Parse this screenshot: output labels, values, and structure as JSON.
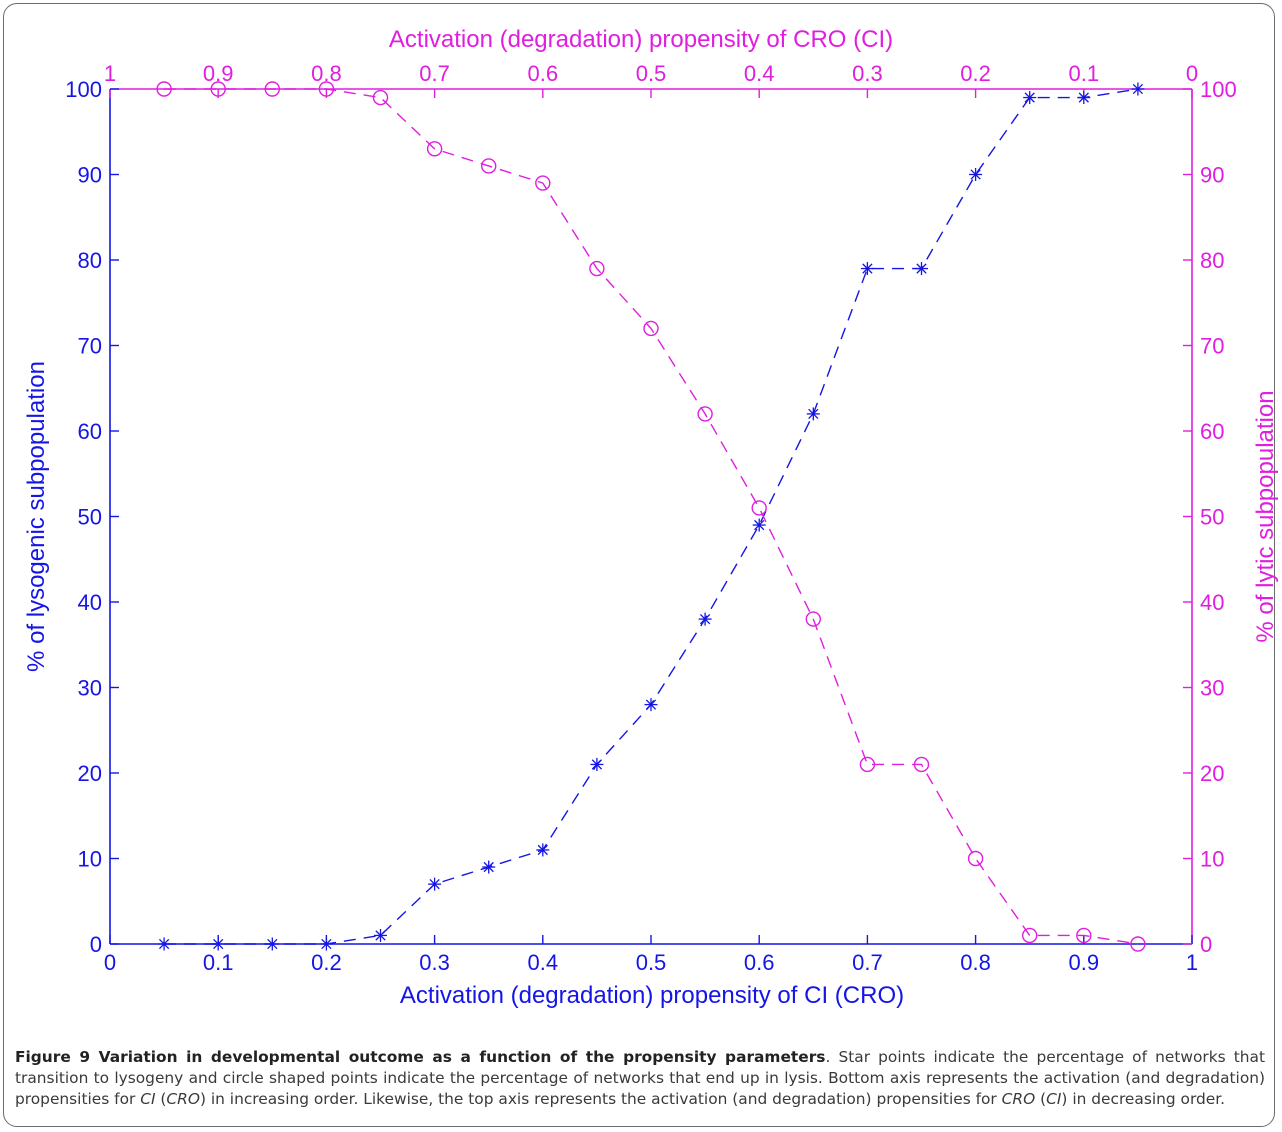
{
  "chart_data": {
    "type": "line",
    "title": "",
    "bottom_axis": {
      "label": "Activation (degradation) propensity of CI (CRO)",
      "lim": [
        0,
        1
      ],
      "ticks": [
        "0",
        "0.1",
        "0.2",
        "0.3",
        "0.4",
        "0.5",
        "0.6",
        "0.7",
        "0.8",
        "0.9",
        "1"
      ],
      "color": "#1515e6"
    },
    "top_axis": {
      "label": "Activation (degradation) propensity of CRO (CI)",
      "lim": [
        1,
        0
      ],
      "ticks": [
        "1",
        "0.9",
        "0.8",
        "0.7",
        "0.6",
        "0.5",
        "0.4",
        "0.3",
        "0.2",
        "0.1",
        "0"
      ],
      "color": "#e01ee0"
    },
    "left_axis": {
      "label": "% of lysogenic subpopulation",
      "lim": [
        0,
        100
      ],
      "ticks": [
        "0",
        "10",
        "20",
        "30",
        "40",
        "50",
        "60",
        "70",
        "80",
        "90",
        "100"
      ],
      "color": "#1515e6"
    },
    "right_axis": {
      "label": "% of lytic subpopulation",
      "lim": [
        0,
        100
      ],
      "ticks": [
        "0",
        "10",
        "20",
        "30",
        "40",
        "50",
        "60",
        "70",
        "80",
        "90",
        "100"
      ],
      "color": "#e01ee0"
    },
    "x": [
      0.05,
      0.1,
      0.15,
      0.2,
      0.25,
      0.3,
      0.35,
      0.4,
      0.45,
      0.5,
      0.55,
      0.6,
      0.65,
      0.7,
      0.75,
      0.8,
      0.85,
      0.9,
      0.95
    ],
    "series": [
      {
        "marker": "star",
        "line_style": "dashed",
        "color": "#1515e6",
        "axis": "left",
        "values": [
          0,
          0,
          0,
          0,
          1,
          7,
          9,
          11,
          21,
          28,
          38,
          49,
          62,
          79,
          79,
          90,
          99,
          99,
          100
        ]
      },
      {
        "marker": "circle",
        "line_style": "dashed",
        "color": "#e01ee0",
        "axis": "right",
        "values": [
          100,
          100,
          100,
          100,
          99,
          93,
          91,
          89,
          79,
          72,
          62,
          51,
          38,
          21,
          21,
          10,
          1,
          1,
          0
        ]
      }
    ],
    "grid": false
  },
  "caption": {
    "figure_label": "Figure 9",
    "bold_title": "Variation in developmental outcome as a function of the propensity parameters",
    "parts": [
      ". Star points indicate the percentage of networks that transition to lysogeny and circle shaped points indicate the percentage of networks that end up in lysis. Bottom axis represents the activation (and degradation) propensities for ",
      "CI",
      " (",
      "CRO",
      ") in increasing order. Likewise, the top axis represents the activation (and degradation) propensities for ",
      "CRO",
      " (",
      "CI",
      ") in decreasing order."
    ]
  }
}
